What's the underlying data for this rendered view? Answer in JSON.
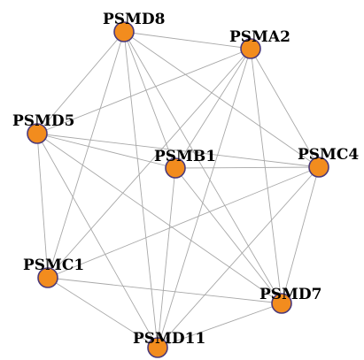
{
  "graph": {
    "node_fill": "#f28c1e",
    "node_stroke": "#4b3a7a",
    "edge_color": "#a8a8a8",
    "nodes": [
      {
        "id": "PSMD8",
        "label": "PSMD8"
      },
      {
        "id": "PSMA2",
        "label": "PSMA2"
      },
      {
        "id": "PSMD5",
        "label": "PSMD5"
      },
      {
        "id": "PSMC4",
        "label": "PSMC4"
      },
      {
        "id": "PSMB1",
        "label": "PSMB1"
      },
      {
        "id": "PSMC1",
        "label": "PSMC1"
      },
      {
        "id": "PSMD7",
        "label": "PSMD7"
      },
      {
        "id": "PSMD11",
        "label": "PSMD11"
      }
    ],
    "edges": [
      [
        "PSMD8",
        "PSMA2"
      ],
      [
        "PSMD8",
        "PSMD5"
      ],
      [
        "PSMD8",
        "PSMC4"
      ],
      [
        "PSMD8",
        "PSMB1"
      ],
      [
        "PSMD8",
        "PSMC1"
      ],
      [
        "PSMD8",
        "PSMD7"
      ],
      [
        "PSMD8",
        "PSMD11"
      ],
      [
        "PSMA2",
        "PSMD5"
      ],
      [
        "PSMA2",
        "PSMC4"
      ],
      [
        "PSMA2",
        "PSMB1"
      ],
      [
        "PSMA2",
        "PSMC1"
      ],
      [
        "PSMA2",
        "PSMD7"
      ],
      [
        "PSMA2",
        "PSMD11"
      ],
      [
        "PSMD5",
        "PSMC4"
      ],
      [
        "PSMD5",
        "PSMB1"
      ],
      [
        "PSMD5",
        "PSMC1"
      ],
      [
        "PSMD5",
        "PSMD7"
      ],
      [
        "PSMD5",
        "PSMD11"
      ],
      [
        "PSMC4",
        "PSMB1"
      ],
      [
        "PSMC4",
        "PSMC1"
      ],
      [
        "PSMC4",
        "PSMD7"
      ],
      [
        "PSMC4",
        "PSMD11"
      ],
      [
        "PSMB1",
        "PSMD11"
      ],
      [
        "PSMB1",
        "PSMD7"
      ],
      [
        "PSMC1",
        "PSMD7"
      ],
      [
        "PSMC1",
        "PSMD11"
      ],
      [
        "PSMD7",
        "PSMD11"
      ]
    ]
  }
}
